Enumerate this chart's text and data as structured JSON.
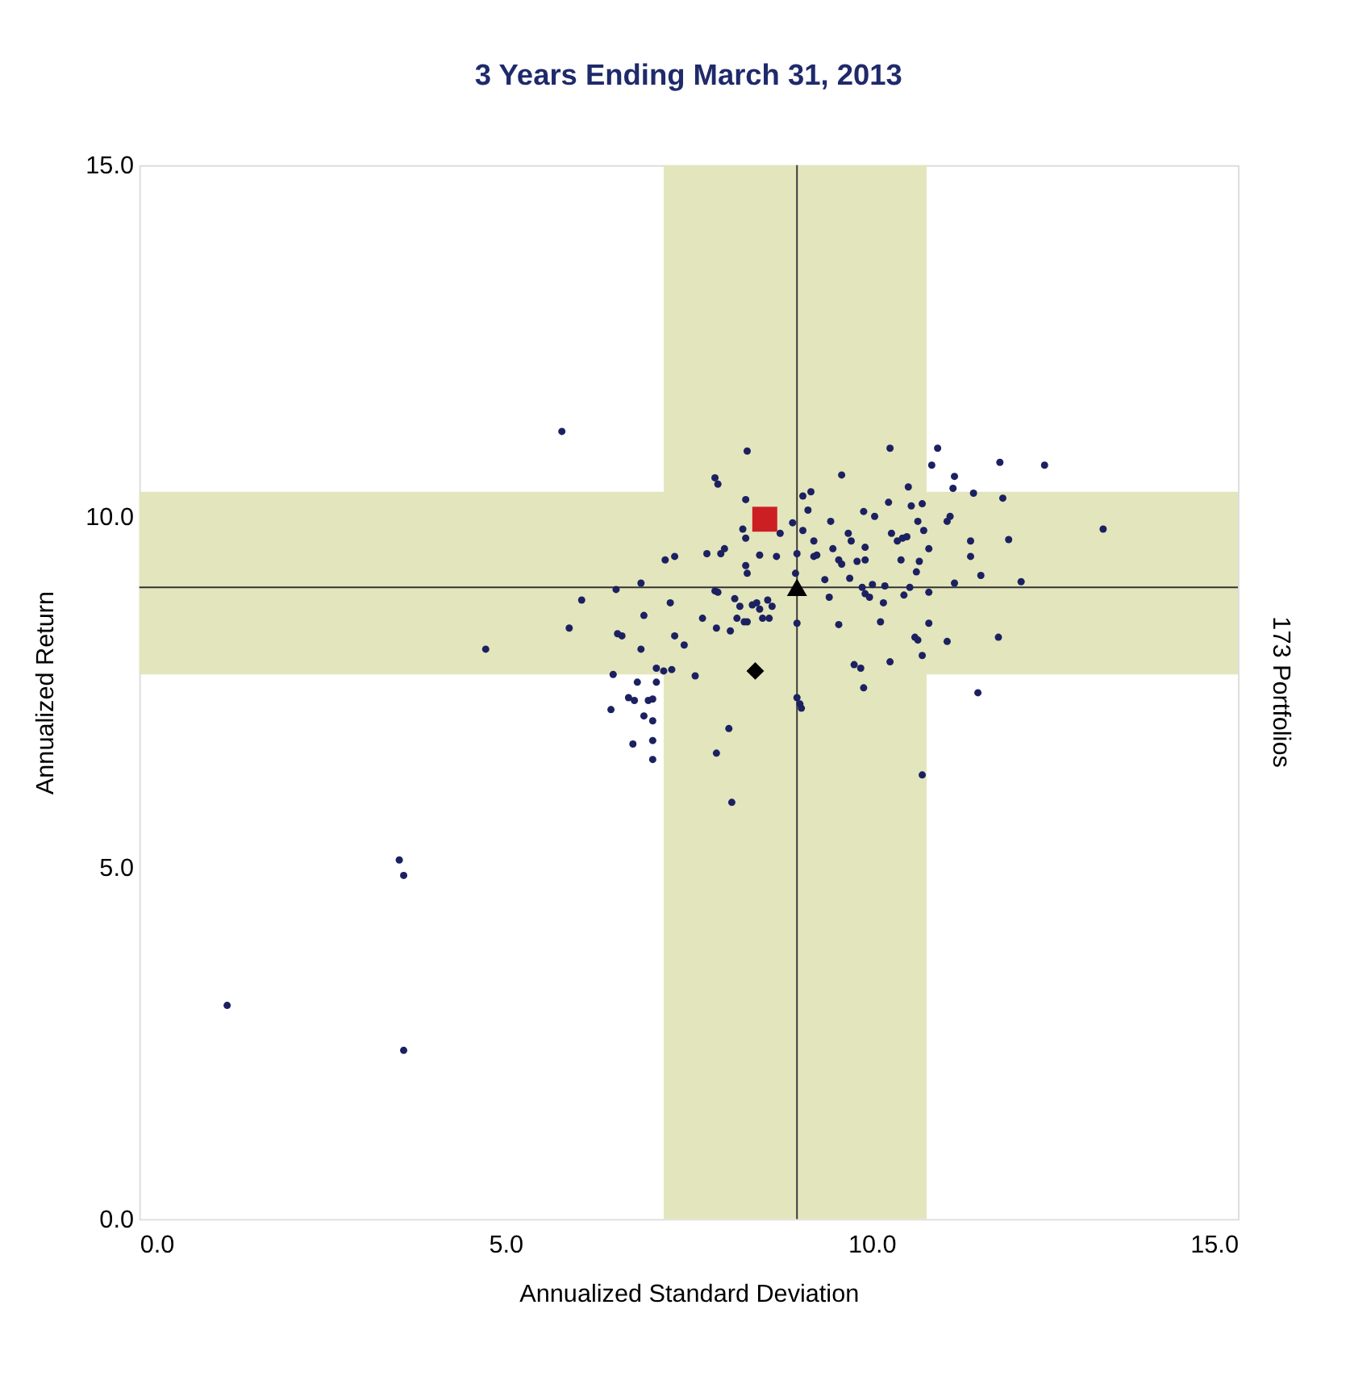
{
  "chart_data": {
    "type": "scatter",
    "title": "3 Years Ending March 31, 2013",
    "xlabel": "Annualized Standard Deviation",
    "ylabel": "Annualized Return",
    "annotations": [
      "173 Portfolios"
    ],
    "xlim": [
      0,
      15
    ],
    "ylim": [
      0,
      15
    ],
    "xticks": [
      {
        "value": 0,
        "label": "0.0"
      },
      {
        "value": 5,
        "label": "5.0"
      },
      {
        "value": 10,
        "label": "10.0"
      },
      {
        "value": 15,
        "label": "15.0"
      }
    ],
    "yticks": [
      {
        "value": 0,
        "label": "0.0"
      },
      {
        "value": 5,
        "label": "5.0"
      },
      {
        "value": 10,
        "label": "10.0"
      },
      {
        "value": 15,
        "label": "15.0"
      }
    ],
    "grid": false,
    "ref_lines": [
      {
        "axis": "x",
        "value": 8.98,
        "color": "#333333"
      },
      {
        "axis": "y",
        "value": 8.99,
        "color": "#333333"
      }
    ],
    "bands": [
      {
        "axis": "x",
        "from": 7.16,
        "to": 10.75,
        "color": "#e3e5bd"
      },
      {
        "axis": "y",
        "from": 7.75,
        "to": 10.35,
        "color": "#e3e5bd"
      }
    ],
    "series": [
      {
        "color": "#1b2160",
        "marker": "circle",
        "x": [
          5.77,
          8.3,
          7.86,
          7.9,
          8.28,
          9.06,
          9.17,
          9.13,
          8.24,
          8.28,
          8.75,
          8.92,
          9.06,
          9.21,
          7.18,
          7.31,
          7.75,
          7.94,
          7.99,
          8.47,
          8.7,
          8.98,
          8.28,
          8.3,
          8.96,
          6.51,
          6.85,
          6.04,
          7.25,
          7.86,
          7.9,
          8.13,
          8.2,
          8.37,
          8.43,
          8.58,
          8.64,
          8.47,
          6.89,
          7.69,
          8.16,
          8.26,
          8.3,
          8.51,
          8.6,
          5.87,
          7.88,
          8.07,
          8.98,
          6.53,
          6.59,
          7.31,
          7.44,
          6.85,
          6.47,
          7.06,
          7.16,
          7.27,
          7.06,
          7.59,
          6.8,
          6.68,
          6.76,
          6.95,
          7.01,
          6.44,
          6.89,
          7.01,
          8.98,
          9.02,
          9.04,
          8.05,
          6.74,
          7.01,
          7.88,
          7.01,
          8.09,
          10.25,
          10.9,
          11.75,
          12.36,
          10.82,
          9.59,
          11.13,
          11.11,
          10.5,
          11.39,
          11.79,
          10.23,
          10.54,
          10.69,
          9.89,
          10.04,
          11.07,
          11.03,
          9.44,
          10.63,
          10.71,
          13.16,
          9.68,
          9.72,
          10.27,
          10.35,
          10.42,
          10.48,
          11.87,
          11.35,
          9.47,
          9.91,
          10.78,
          9.21,
          9.25,
          9.55,
          9.59,
          9.8,
          9.91,
          10.4,
          10.65,
          11.35,
          10.61,
          11.49,
          9.36,
          9.7,
          12.04,
          11.13,
          9.87,
          10.01,
          10.18,
          10.52,
          9.91,
          9.97,
          10.78,
          9.42,
          10.44,
          10.16,
          9.55,
          10.12,
          10.78,
          11.73,
          10.59,
          10.63,
          11.03,
          10.69,
          10.25,
          9.76,
          9.85,
          11.45,
          9.89,
          10.69,
          4.73,
          3.55,
          3.61,
          1.2,
          3.61
        ],
        "values": [
          11.21,
          10.93,
          10.55,
          10.46,
          10.24,
          10.29,
          10.35,
          10.09,
          9.82,
          9.69,
          9.76,
          9.91,
          9.8,
          9.65,
          9.38,
          9.43,
          9.47,
          9.47,
          9.54,
          9.45,
          9.43,
          9.47,
          9.3,
          9.19,
          9.19,
          8.96,
          9.05,
          8.81,
          8.77,
          8.94,
          8.92,
          8.83,
          8.72,
          8.74,
          8.77,
          8.81,
          8.72,
          8.68,
          8.59,
          8.55,
          8.55,
          8.5,
          8.5,
          8.55,
          8.55,
          8.41,
          8.41,
          8.37,
          8.48,
          8.33,
          8.3,
          8.3,
          8.17,
          8.11,
          7.75,
          7.84,
          7.8,
          7.82,
          7.64,
          7.73,
          7.64,
          7.42,
          7.38,
          7.38,
          7.4,
          7.25,
          7.16,
          7.09,
          7.42,
          7.33,
          7.27,
          6.98,
          6.76,
          6.81,
          6.63,
          6.54,
          5.93,
          10.97,
          10.97,
          10.77,
          10.73,
          10.73,
          10.59,
          10.57,
          10.4,
          10.42,
          10.33,
          10.26,
          10.2,
          10.15,
          10.18,
          10.07,
          10.0,
          10.0,
          9.93,
          9.93,
          9.93,
          9.8,
          9.82,
          9.76,
          9.65,
          9.76,
          9.65,
          9.69,
          9.71,
          9.67,
          9.65,
          9.54,
          9.56,
          9.54,
          9.43,
          9.45,
          9.38,
          9.32,
          9.36,
          9.38,
          9.38,
          9.36,
          9.43,
          9.21,
          9.16,
          9.1,
          9.12,
          9.07,
          9.05,
          8.99,
          9.03,
          9.01,
          8.99,
          8.9,
          8.85,
          8.92,
          8.85,
          8.88,
          8.77,
          8.46,
          8.5,
          8.48,
          8.28,
          8.28,
          8.24,
          8.22,
          8.02,
          7.93,
          7.89,
          7.84,
          7.49,
          7.56,
          6.32,
          8.11,
          5.11,
          4.89,
          3.04,
          2.4
        ]
      },
      {
        "color": "#cc1f24",
        "marker": "square",
        "x": [
          8.54
        ],
        "values": [
          9.96
        ]
      },
      {
        "color": "#000000",
        "marker": "triangle",
        "x": [
          8.98
        ],
        "values": [
          8.99
        ]
      },
      {
        "color": "#000000",
        "marker": "diamond",
        "x": [
          8.41
        ],
        "values": [
          7.8
        ]
      }
    ]
  }
}
